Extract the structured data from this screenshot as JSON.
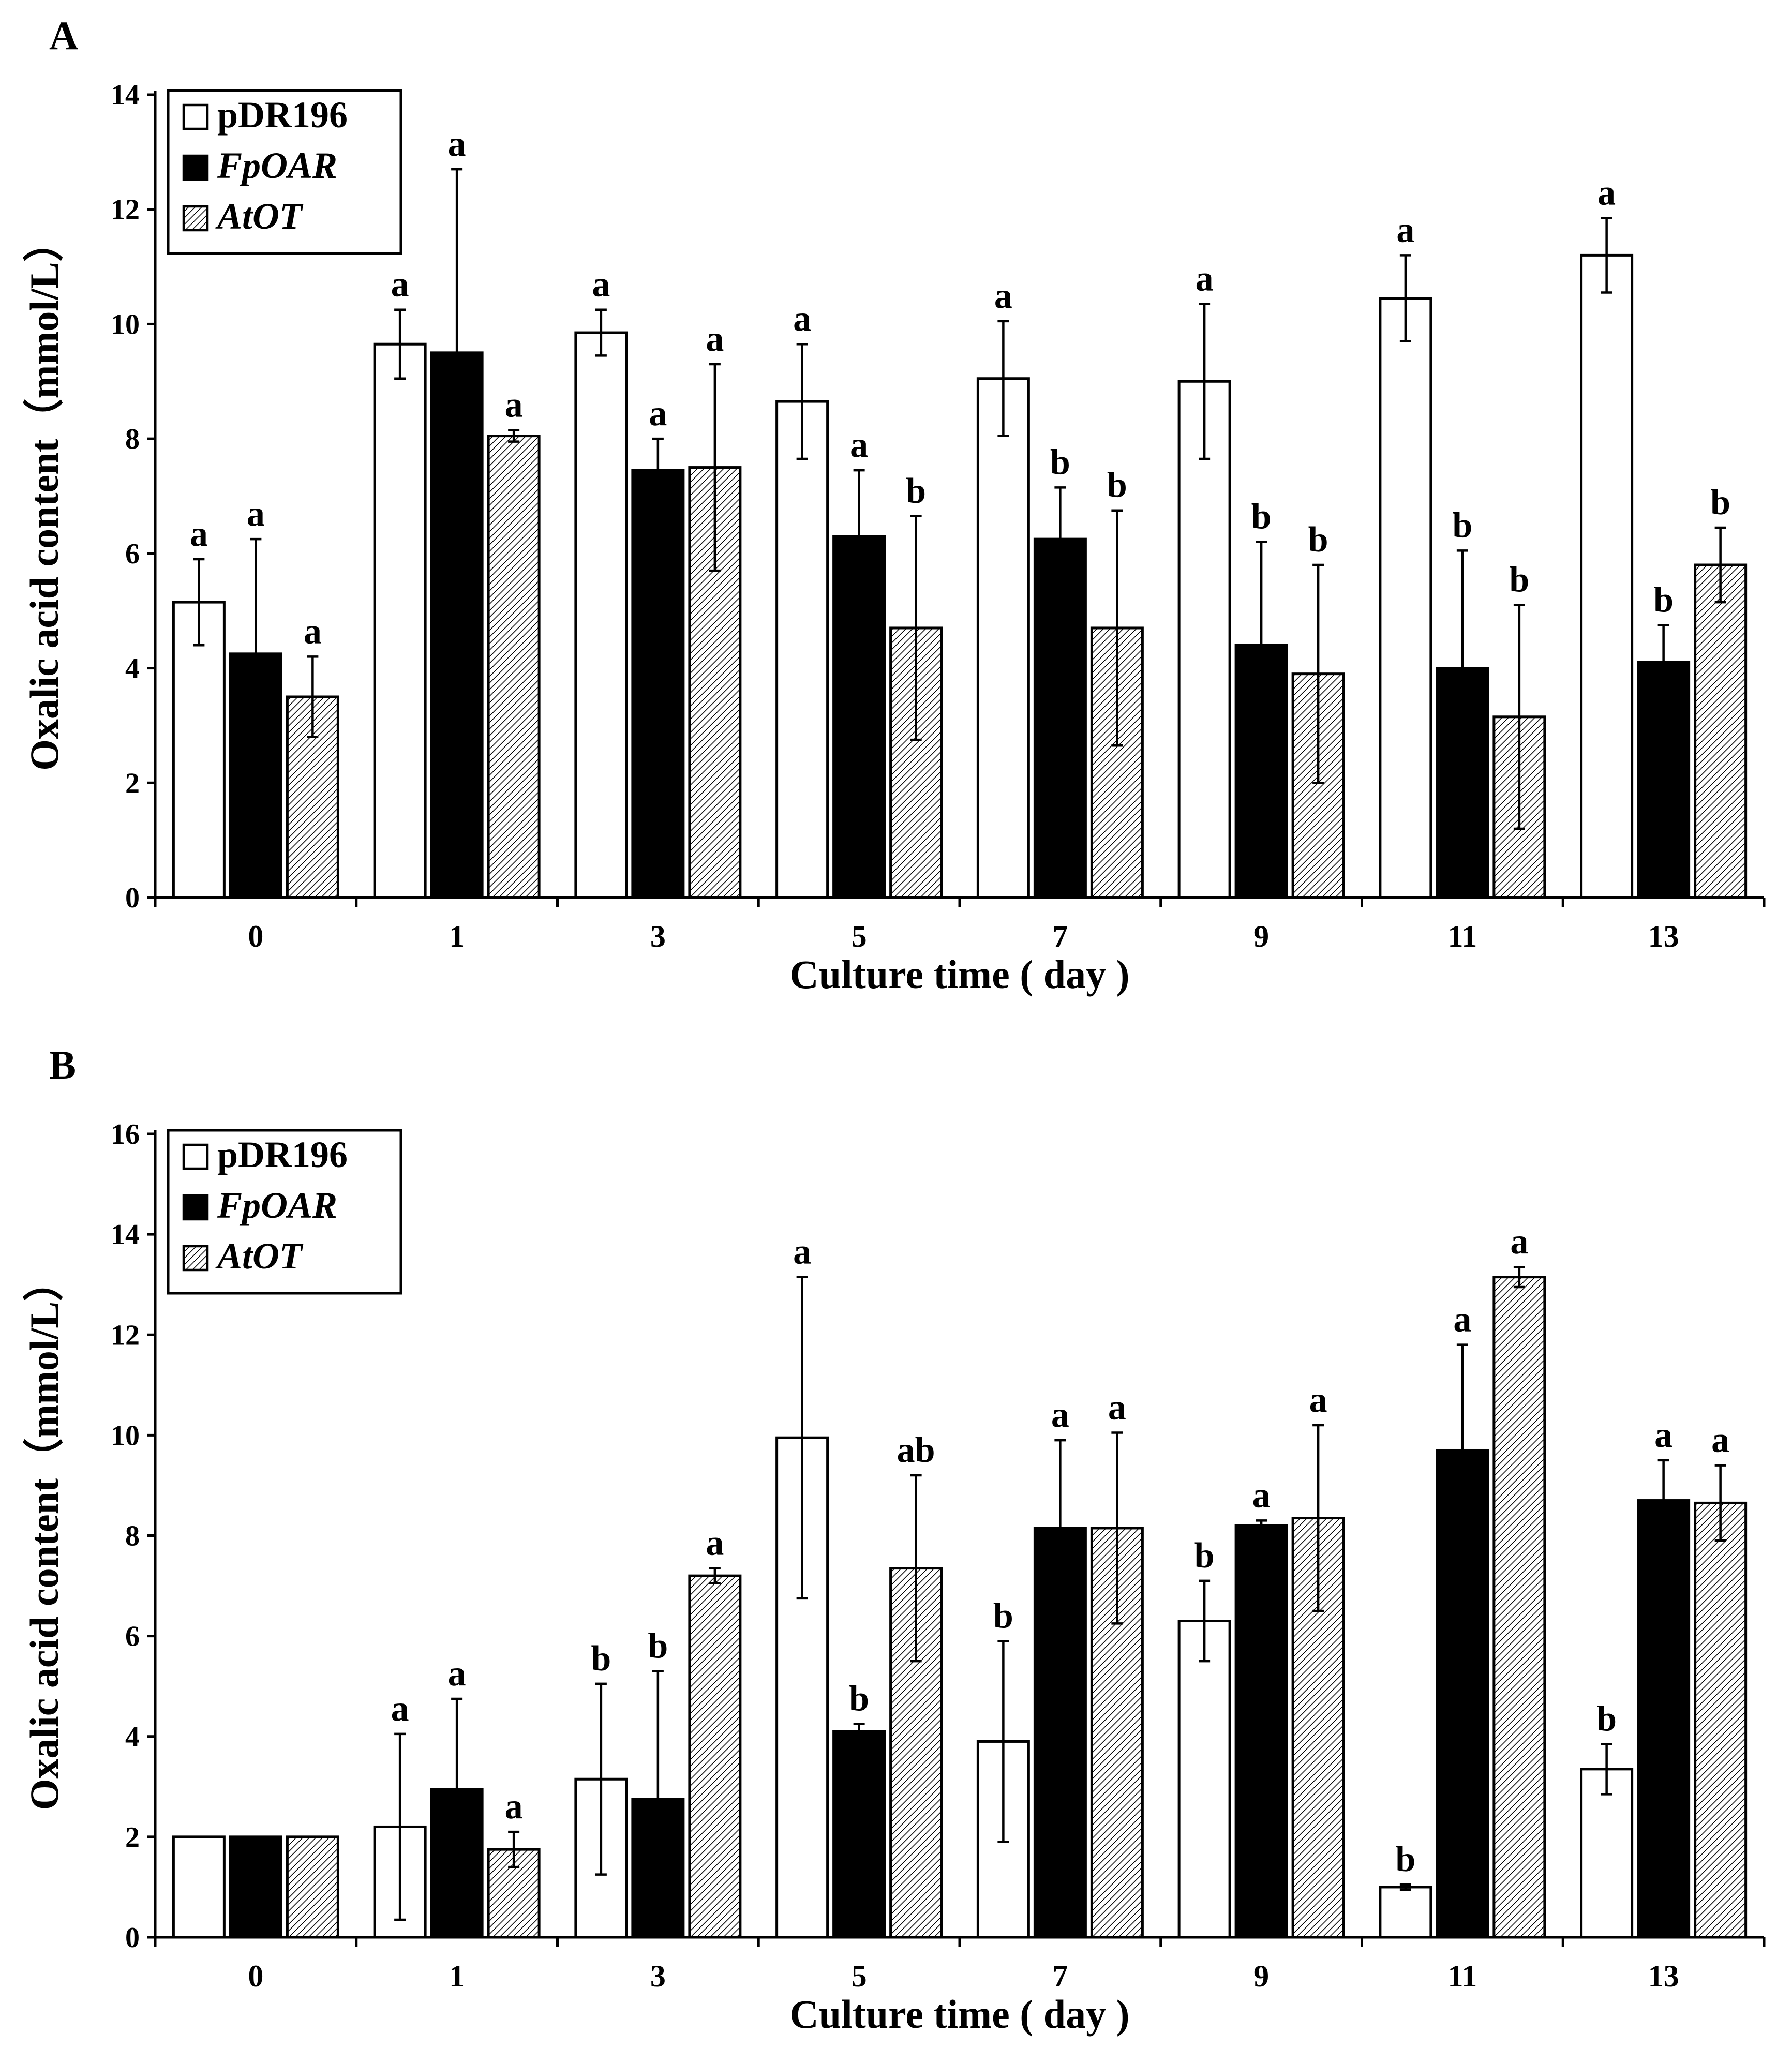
{
  "chart_data": [
    {
      "panel_label": "A",
      "type": "bar",
      "title": "",
      "xlabel": "Culture time ( day )",
      "ylabel": "Oxalic acid content（mmol/L）",
      "categories": [
        "0",
        "1",
        "3",
        "5",
        "7",
        "9",
        "11",
        "13"
      ],
      "ylim": [
        0,
        14
      ],
      "yticks": [
        0,
        2,
        4,
        6,
        8,
        10,
        12,
        14
      ],
      "legend_position": "top-left",
      "series": [
        {
          "name": "pDR196",
          "italic": false,
          "fill": "white",
          "values": [
            5.15,
            9.65,
            9.85,
            8.65,
            9.05,
            9.0,
            10.45,
            11.2
          ],
          "errors": [
            0.75,
            0.6,
            0.4,
            1.0,
            1.0,
            1.35,
            0.75,
            0.65
          ],
          "labels": [
            "a",
            "a",
            "a",
            "a",
            "a",
            "a",
            "a",
            "a"
          ]
        },
        {
          "name": "FpOAR",
          "italic": true,
          "fill": "black",
          "values": [
            4.25,
            9.5,
            7.45,
            6.3,
            6.25,
            4.4,
            4.0,
            4.1
          ],
          "errors": [
            2.0,
            3.2,
            0.55,
            1.15,
            0.9,
            1.8,
            2.05,
            0.65
          ],
          "labels": [
            "a",
            "a",
            "a",
            "a",
            "b",
            "b",
            "b",
            "b"
          ]
        },
        {
          "name": "AtOT",
          "italic": true,
          "fill": "hatched",
          "values": [
            3.5,
            8.05,
            7.5,
            4.7,
            4.7,
            3.9,
            3.15,
            5.8
          ],
          "errors": [
            0.7,
            0.1,
            1.8,
            1.95,
            2.05,
            1.9,
            1.95,
            0.65
          ],
          "labels": [
            "a",
            "a",
            "a",
            "b",
            "b",
            "b",
            "b",
            "b"
          ]
        }
      ]
    },
    {
      "panel_label": "B",
      "type": "bar",
      "title": "",
      "xlabel": "Culture time ( day )",
      "ylabel": "Oxalic acid content（mmol/L）",
      "categories": [
        "0",
        "1",
        "3",
        "5",
        "7",
        "9",
        "11",
        "13"
      ],
      "ylim": [
        0,
        16
      ],
      "yticks": [
        0,
        2,
        4,
        6,
        8,
        10,
        12,
        14,
        16
      ],
      "legend_position": "top-left",
      "series": [
        {
          "name": "pDR196",
          "italic": false,
          "fill": "white",
          "values": [
            2.0,
            2.2,
            3.15,
            9.95,
            3.9,
            6.3,
            1.0,
            3.35
          ],
          "errors": [
            0,
            1.85,
            1.9,
            3.2,
            2.0,
            0.8,
            0.05,
            0.5
          ],
          "labels": [
            "",
            "a",
            "b",
            "a",
            "b",
            "b",
            "b",
            "b"
          ]
        },
        {
          "name": "FpOAR",
          "italic": true,
          "fill": "black",
          "values": [
            2.0,
            2.95,
            2.75,
            4.1,
            8.15,
            8.2,
            9.7,
            8.7
          ],
          "errors": [
            0,
            1.8,
            2.55,
            0.15,
            1.75,
            0.1,
            2.1,
            0.8
          ],
          "labels": [
            "",
            "a",
            "b",
            "b",
            "a",
            "a",
            "a",
            "a"
          ]
        },
        {
          "name": "AtOT",
          "italic": true,
          "fill": "hatched",
          "values": [
            2.0,
            1.75,
            7.2,
            7.35,
            8.15,
            8.35,
            13.15,
            8.65
          ],
          "errors": [
            0,
            0.35,
            0.15,
            1.85,
            1.9,
            1.85,
            0.2,
            0.75
          ],
          "labels": [
            "",
            "a",
            "a",
            "ab",
            "a",
            "a",
            "a",
            "a"
          ]
        }
      ]
    }
  ]
}
